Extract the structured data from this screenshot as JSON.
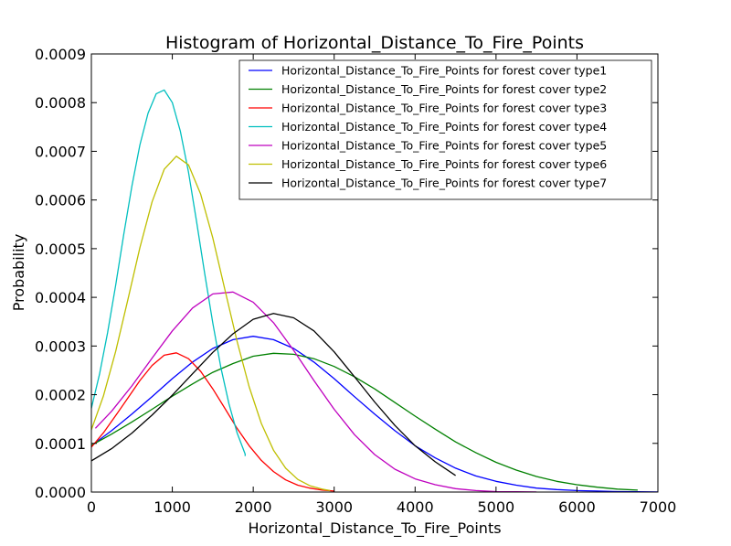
{
  "chart_data": {
    "type": "line",
    "title": "Histogram of Horizontal_Distance_To_Fire_Points",
    "xlabel": "Horizontal_Distance_To_Fire_Points",
    "ylabel": "Probability",
    "xlim": [
      0,
      7000
    ],
    "ylim": [
      0,
      0.0009
    ],
    "x_ticks": [
      0,
      1000,
      2000,
      3000,
      4000,
      5000,
      6000,
      7000
    ],
    "x_tick_labels": [
      "0",
      "1000",
      "2000",
      "3000",
      "4000",
      "5000",
      "6000",
      "7000"
    ],
    "y_ticks": [
      0,
      0.0001,
      0.0002,
      0.0003,
      0.0004,
      0.0005,
      0.0006,
      0.0007,
      0.0008,
      0.0009
    ],
    "y_tick_labels": [
      "0.0000",
      "0.0001",
      "0.0002",
      "0.0003",
      "0.0004",
      "0.0005",
      "0.0006",
      "0.0007",
      "0.0008",
      "0.0009"
    ],
    "grid": false,
    "legend_position": "top-right",
    "series": [
      {
        "name": "Horizontal_Distance_To_Fire_Points for forest cover type1",
        "color": "#0000ff",
        "x": [
          0,
          250,
          500,
          750,
          1000,
          1250,
          1500,
          1750,
          2000,
          2250,
          2500,
          2750,
          3000,
          3250,
          3500,
          3750,
          4000,
          4250,
          4500,
          4750,
          5000,
          5250,
          5500,
          5750,
          6000,
          6250,
          6500,
          6750,
          7000
        ],
        "y": [
          9.5e-05,
          0.000126,
          0.00016,
          0.000196,
          0.000233,
          0.000267,
          0.000295,
          0.000313,
          0.00032,
          0.000313,
          0.000295,
          0.000267,
          0.000233,
          0.000196,
          0.00016,
          0.000126,
          9.5e-05,
          7e-05,
          4.9e-05,
          3.3e-05,
          2.2e-05,
          1.4e-05,
          8e-06,
          5e-06,
          3e-06,
          2e-06,
          1e-06,
          5e-07,
          2e-07
        ]
      },
      {
        "name": "Horizontal_Distance_To_Fire_Points for forest cover type2",
        "color": "#008000",
        "x": [
          0,
          250,
          500,
          750,
          1000,
          1250,
          1500,
          1750,
          2000,
          2250,
          2500,
          2750,
          3000,
          3250,
          3500,
          3750,
          4000,
          4250,
          4500,
          4750,
          5000,
          5250,
          5500,
          5750,
          6000,
          6250,
          6500,
          6750
        ],
        "y": [
          9.6e-05,
          0.000119,
          0.000144,
          0.00017,
          0.000197,
          0.000222,
          0.000246,
          0.000264,
          0.000279,
          0.000285,
          0.000283,
          0.000274,
          0.000258,
          0.000237,
          0.000212,
          0.000184,
          0.000156,
          0.000129,
          0.000103,
          8.1e-05,
          6.1e-05,
          4.5e-05,
          3.2e-05,
          2.2e-05,
          1.5e-05,
          1e-05,
          6e-06,
          4e-06
        ]
      },
      {
        "name": "Horizontal_Distance_To_Fire_Points for forest cover type3",
        "color": "#ff0000",
        "x": [
          0,
          150,
          300,
          450,
          600,
          750,
          900,
          1050,
          1200,
          1350,
          1500,
          1650,
          1800,
          1950,
          2100,
          2250,
          2400,
          2550,
          2700,
          2850,
          3000
        ],
        "y": [
          9.2e-05,
          0.000122,
          0.000157,
          0.000193,
          0.000229,
          0.00026,
          0.000281,
          0.000286,
          0.000274,
          0.000248,
          0.000212,
          0.000172,
          0.000131,
          9.5e-05,
          6.5e-05,
          4.2e-05,
          2.5e-05,
          1.4e-05,
          8e-06,
          4e-06,
          2e-06
        ]
      },
      {
        "name": "Horizontal_Distance_To_Fire_Points for forest cover type4",
        "color": "#00bfbf",
        "x": [
          0,
          100,
          200,
          300,
          400,
          500,
          600,
          700,
          800,
          900,
          1000,
          1100,
          1200,
          1300,
          1400,
          1500,
          1600,
          1700,
          1800,
          1900,
          1900
        ],
        "y": [
          0.000172,
          0.000242,
          0.000327,
          0.000425,
          0.000529,
          0.000628,
          0.000713,
          0.000778,
          0.000818,
          0.000826,
          0.0008,
          0.000741,
          0.000657,
          0.000556,
          0.000449,
          0.000347,
          0.000256,
          0.000181,
          0.000122,
          7.8e-05,
          7.4e-05
        ]
      },
      {
        "name": "Horizontal_Distance_To_Fire_Points for forest cover type5",
        "color": "#bf00bf",
        "x": [
          50,
          250,
          500,
          750,
          1000,
          1250,
          1500,
          1750,
          2000,
          2250,
          2500,
          2750,
          3000,
          3250,
          3500,
          3750,
          4000,
          4250,
          4500,
          4750,
          5000,
          5250,
          5500
        ],
        "y": [
          0.000131,
          0.000166,
          0.000218,
          0.000275,
          0.000331,
          0.000378,
          0.000407,
          0.000411,
          0.00039,
          0.000348,
          0.000291,
          0.000229,
          0.00017,
          0.000118,
          7.7e-05,
          4.7e-05,
          2.7e-05,
          1.5e-05,
          7e-06,
          3e-06,
          1e-06,
          5e-07,
          2e-07
        ]
      },
      {
        "name": "Horizontal_Distance_To_Fire_Points for forest cover type6",
        "color": "#bfbf00",
        "x": [
          0,
          150,
          300,
          450,
          600,
          750,
          900,
          1050,
          1200,
          1350,
          1500,
          1650,
          1800,
          1950,
          2100,
          2250,
          2400,
          2550,
          2700,
          2850,
          2950
        ],
        "y": [
          0.000128,
          0.000198,
          0.000289,
          0.000395,
          0.000502,
          0.000596,
          0.000663,
          0.00069,
          0.000672,
          0.000612,
          0.000522,
          0.000416,
          0.00031,
          0.000216,
          0.000141,
          8.6e-05,
          4.9e-05,
          2.6e-05,
          1.3e-05,
          6e-06,
          3e-06
        ]
      },
      {
        "name": "Horizontal_Distance_To_Fire_Points for forest cover type7",
        "color": "#000000",
        "x": [
          0,
          250,
          500,
          750,
          1000,
          1250,
          1500,
          1750,
          2000,
          2250,
          2500,
          2750,
          3000,
          3250,
          3500,
          3750,
          4000,
          4250,
          4500
        ],
        "y": [
          6.4e-05,
          8.9e-05,
          0.000121,
          0.000158,
          0.000199,
          0.000243,
          0.000287,
          0.000325,
          0.000355,
          0.000367,
          0.000358,
          0.000331,
          0.000288,
          0.000237,
          0.000185,
          0.000137,
          9.5e-05,
          6.2e-05,
          3.4e-05
        ]
      }
    ]
  }
}
